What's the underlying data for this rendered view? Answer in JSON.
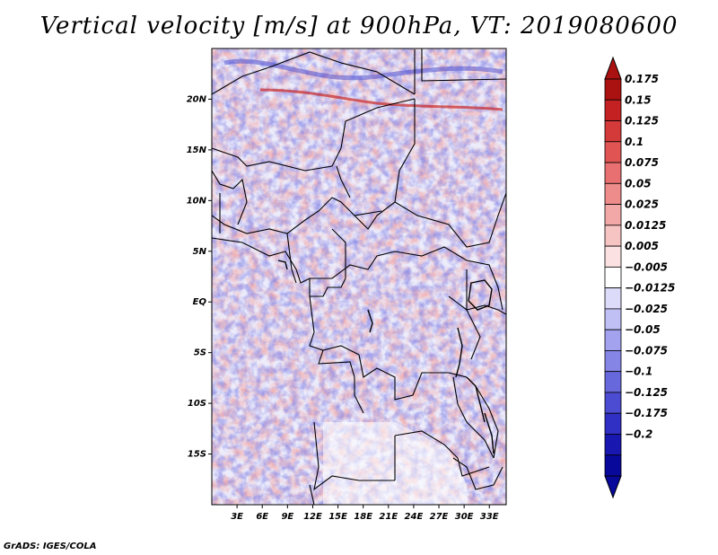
{
  "chart_data": {
    "type": "heatmap",
    "title": "Vertical velocity [m/s] at 900hPa, VT: 2019080600",
    "variable": "Vertical velocity",
    "units": "m/s",
    "level": "900hPa",
    "valid_time": "2019080600",
    "x_axis": {
      "ticks": [
        3,
        6,
        9,
        12,
        15,
        18,
        21,
        24,
        27,
        30,
        33
      ],
      "tick_labels": [
        "3E",
        "6E",
        "9E",
        "12E",
        "15E",
        "18E",
        "21E",
        "24E",
        "27E",
        "30E",
        "33E"
      ],
      "range": [
        0,
        35
      ]
    },
    "y_axis": {
      "ticks": [
        20,
        15,
        10,
        5,
        0,
        -5,
        -10,
        -15
      ],
      "tick_labels": [
        "20N",
        "15N",
        "10N",
        "5N",
        "EQ",
        "5S",
        "10S",
        "15S"
      ],
      "range": [
        -20,
        25
      ]
    },
    "colorbar": {
      "labels": [
        "0.175",
        "0.15",
        "0.125",
        "0.1",
        "0.075",
        "0.05",
        "0.025",
        "0.0125",
        "0.005",
        "−0.005",
        "−0.0125",
        "−0.025",
        "−0.05",
        "−0.075",
        "−0.1",
        "−0.125",
        "−0.175",
        "−0.2"
      ],
      "colors": [
        "#aa1111",
        "#c42222",
        "#d43a3a",
        "#e05454",
        "#e87070",
        "#ee8c8c",
        "#f3a8a8",
        "#f7c4c4",
        "#fbe1e1",
        "#ffffff",
        "#dcdcfa",
        "#c0c0f5",
        "#a2a2ee",
        "#8585e6",
        "#6868dd",
        "#4c4cd2",
        "#3030c4",
        "#1818b0",
        "#08089a"
      ]
    },
    "credit": "GrADS: IGES/COLA"
  }
}
